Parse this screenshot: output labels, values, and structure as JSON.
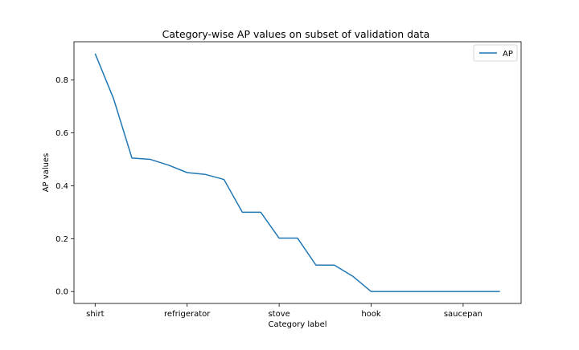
{
  "colors": {
    "series": "#1f77b4",
    "axes": "#000000",
    "background": "#ffffff"
  },
  "chart_data": {
    "type": "line",
    "title": "Category-wise AP values on subset of validation data",
    "xlabel": "Category label",
    "ylabel": "AP values",
    "x_tick_labels": [
      {
        "index": 0,
        "label": "shirt"
      },
      {
        "index": 5,
        "label": "refrigerator"
      },
      {
        "index": 10,
        "label": "stove"
      },
      {
        "index": 15,
        "label": "hook"
      },
      {
        "index": 20,
        "label": "saucepan"
      }
    ],
    "y_ticks": [
      0.0,
      0.2,
      0.4,
      0.6,
      0.8
    ],
    "y_tick_labels": [
      "0.0",
      "0.2",
      "0.4",
      "0.6",
      "0.8"
    ],
    "xlim": [
      -1.15,
      23.15
    ],
    "ylim": [
      -0.045,
      0.945
    ],
    "grid": false,
    "legend": {
      "position": "top-right"
    },
    "series": [
      {
        "name": "AP",
        "x": [
          0,
          1,
          2,
          3,
          4,
          5,
          6,
          7,
          8,
          9,
          10,
          11,
          12,
          13,
          14,
          15,
          16,
          17,
          18,
          19,
          20,
          21,
          22
        ],
        "values": [
          0.9,
          0.73,
          0.505,
          0.5,
          0.478,
          0.45,
          0.443,
          0.424,
          0.3,
          0.3,
          0.202,
          0.202,
          0.1,
          0.1,
          0.058,
          0.0,
          0.0,
          0.0,
          0.0,
          0.0,
          0.0,
          0.0,
          0.0
        ]
      }
    ]
  }
}
